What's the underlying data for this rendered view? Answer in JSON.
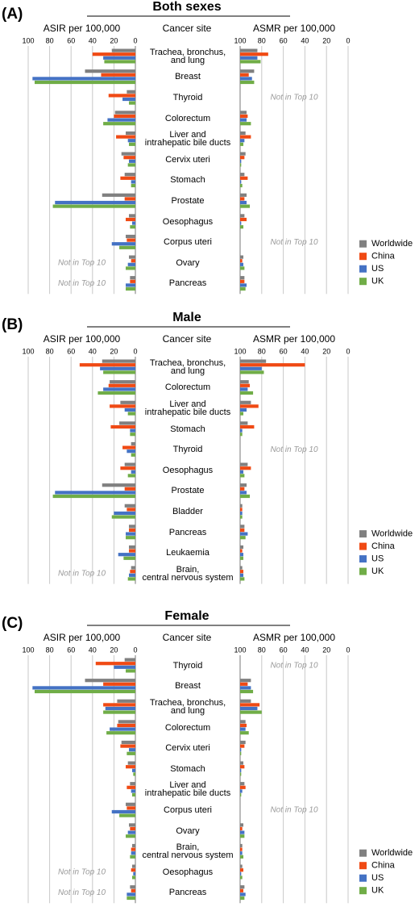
{
  "chart_data": [
    {
      "type": "mirrored-bar",
      "panel_label": "(A)",
      "title": "Both sexes",
      "center_label": "Cancer site",
      "legend": "bottom-right",
      "grid": true,
      "categories": [
        "Trachea, bronchus,\nand lung",
        "Breast",
        "Thyroid",
        "Colorectum",
        "Liver and\nintrahepatic bile ducts",
        "Cervix uteri",
        "Stomach",
        "Prostate",
        "Oesophagus",
        "Corpus uteri",
        "Ovary",
        "Pancreas"
      ],
      "asir": {
        "label": "ASIR per 100,000",
        "xlim": [
          100,
          0
        ],
        "xticks": [
          100,
          80,
          60,
          40,
          20,
          0
        ],
        "notes": [
          null,
          null,
          null,
          null,
          null,
          null,
          null,
          null,
          null,
          null,
          "Not in Top 10",
          "Not in Top 10"
        ],
        "series": [
          {
            "name": "Worldwide",
            "color": "#808080",
            "values": [
              22,
              47,
              8,
              19,
              9,
              13,
              10,
              31,
              6,
              9,
              6,
              5
            ]
          },
          {
            "name": "China",
            "color": "#f04a14",
            "values": [
              40,
              32,
              25,
              20,
              18,
              11,
              14,
              10,
              9,
              8,
              4,
              5
            ]
          },
          {
            "name": "US",
            "color": "#4472c4",
            "values": [
              30,
              96,
              12,
              26,
              7,
              6,
              4,
              75,
              3,
              22,
              7,
              9
            ]
          },
          {
            "name": "UK",
            "color": "#70ad47",
            "values": [
              29,
              94,
              6,
              30,
              6,
              7,
              4,
              77,
              5,
              15,
              9,
              9
            ]
          }
        ]
      },
      "asmr": {
        "label": "ASMR per 100,000",
        "xlim": [
          100,
          0
        ],
        "xticks": [
          100,
          80,
          60,
          40,
          20,
          0
        ],
        "notes": [
          null,
          null,
          "Not in Top 10",
          null,
          null,
          null,
          null,
          null,
          null,
          "Not in Top 10",
          null,
          null
        ],
        "series": [
          {
            "values": [
              84,
              87,
              null,
              94,
              95,
              95,
              96,
              94,
              96,
              null,
              97,
              96
            ]
          },
          {
            "values": [
              74,
              92,
              null,
              93,
              90,
              96,
              93,
              96,
              94,
              null,
              98,
              96
            ]
          },
          {
            "values": [
              84,
              89,
              null,
              94,
              96,
              99,
              99,
              94,
              99,
              null,
              97,
              94
            ]
          },
          {
            "values": [
              81,
              87,
              null,
              90,
              97,
              99,
              98,
              91,
              97,
              null,
              96,
              95
            ]
          }
        ]
      }
    },
    {
      "type": "mirrored-bar",
      "panel_label": "(B)",
      "title": "Male",
      "center_label": "Cancer site",
      "legend": "bottom-right",
      "grid": true,
      "categories": [
        "Trachea, bronchus,\nand lung",
        "Colorectum",
        "Liver and\nintrahepatic bile ducts",
        "Stomach",
        "Thyroid",
        "Oesophagus",
        "Prostate",
        "Bladder",
        "Pancreas",
        "Leukaemia",
        "Brain,\ncentral nervous system"
      ],
      "asir": {
        "label": "ASIR per 100,000",
        "xlim": [
          100,
          0
        ],
        "xticks": [
          100,
          80,
          60,
          40,
          20,
          0
        ],
        "notes": [
          null,
          null,
          null,
          null,
          null,
          null,
          null,
          null,
          null,
          null,
          "Not in Top 10"
        ],
        "series": [
          {
            "name": "Worldwide",
            "color": "#808080",
            "values": [
              31,
              24,
              14,
              15,
              4,
              10,
              31,
              10,
              6,
              6,
              4
            ]
          },
          {
            "name": "China",
            "color": "#f04a14",
            "values": [
              52,
              25,
              24,
              23,
              12,
              14,
              10,
              8,
              6,
              6,
              5
            ]
          },
          {
            "name": "US",
            "color": "#4472c4",
            "values": [
              33,
              30,
              10,
              5,
              8,
              4,
              75,
              20,
              9,
              16,
              6
            ]
          },
          {
            "name": "UK",
            "color": "#70ad47",
            "values": [
              30,
              35,
              7,
              5,
              4,
              7,
              77,
              22,
              9,
              11,
              7
            ]
          }
        ]
      },
      "asmr": {
        "label": "ASMR per 100,000",
        "xlim": [
          100,
          0
        ],
        "xticks": [
          100,
          80,
          60,
          40,
          20,
          0
        ],
        "notes": [
          null,
          null,
          null,
          null,
          "Not in Top 10",
          null,
          null,
          null,
          null,
          null,
          null
        ],
        "series": [
          {
            "values": [
              76,
              92,
              90,
              93,
              null,
              93,
              94,
              98,
              96,
              97,
              98
            ]
          },
          {
            "values": [
              40,
              91,
              83,
              87,
              null,
              90,
              96,
              98,
              96,
              98,
              97
            ]
          },
          {
            "values": [
              80,
              93,
              94,
              98,
              null,
              97,
              94,
              98,
              93,
              97,
              97
            ]
          },
          {
            "values": [
              78,
              88,
              97,
              98,
              null,
              96,
              91,
              98,
              95,
              97,
              96
            ]
          }
        ]
      }
    },
    {
      "type": "mirrored-bar",
      "panel_label": "(C)",
      "title": "Female",
      "center_label": "Cancer site",
      "legend": "bottom-right",
      "grid": true,
      "categories": [
        "Thyroid",
        "Breast",
        "Trachea, bronchus,\nand lung",
        "Colorectum",
        "Cervix uteri",
        "Stomach",
        "Liver and\nintrahepatic bile ducts",
        "Corpus uteri",
        "Ovary",
        "Brain,\ncentral nervous system",
        "Oesophagus",
        "Pancreas"
      ],
      "asir": {
        "label": "ASIR per 100,000",
        "xlim": [
          100,
          0
        ],
        "xticks": [
          100,
          80,
          60,
          40,
          20,
          0
        ],
        "notes": [
          null,
          null,
          null,
          null,
          null,
          null,
          null,
          null,
          null,
          null,
          "Not in Top 10",
          "Not in Top 10"
        ],
        "series": [
          {
            "name": "Worldwide",
            "color": "#808080",
            "values": [
              10,
              47,
              17,
              16,
              13,
              7,
              5,
              9,
              6,
              3,
              3,
              5
            ]
          },
          {
            "name": "China",
            "color": "#f04a14",
            "values": [
              37,
              30,
              30,
              17,
              14,
              9,
              8,
              8,
              5,
              4,
              4,
              4
            ]
          },
          {
            "name": "US",
            "color": "#4472c4",
            "values": [
              20,
              96,
              28,
              24,
              6,
              3,
              4,
              22,
              7,
              4,
              2,
              8
            ]
          },
          {
            "name": "UK",
            "color": "#70ad47",
            "values": [
              9,
              94,
              30,
              27,
              8,
              2,
              3,
              15,
              9,
              5,
              3,
              8
            ]
          }
        ]
      },
      "asmr": {
        "label": "ASMR per 100,000",
        "xlim": [
          100,
          0
        ],
        "xticks": [
          100,
          80,
          60,
          40,
          20,
          0
        ],
        "notes": [
          "Not in Top 10",
          null,
          null,
          null,
          null,
          null,
          null,
          "Not in Top 10",
          null,
          null,
          null,
          null
        ],
        "series": [
          {
            "values": [
              null,
              90,
              90,
              95,
              95,
              97,
              96,
              null,
              97,
              98,
              98,
              96
            ]
          },
          {
            "values": [
              null,
              93,
              82,
              94,
              96,
              96,
              95,
              null,
              98,
              98,
              97,
              97
            ]
          },
          {
            "values": [
              null,
              90,
              84,
              95,
              99,
              99,
              98,
              null,
              96,
              98,
              99,
              95
            ]
          },
          {
            "values": [
              null,
              88,
              80,
              92,
              99,
              99,
              99,
              null,
              96,
              97,
              98,
              96
            ]
          }
        ]
      }
    }
  ]
}
